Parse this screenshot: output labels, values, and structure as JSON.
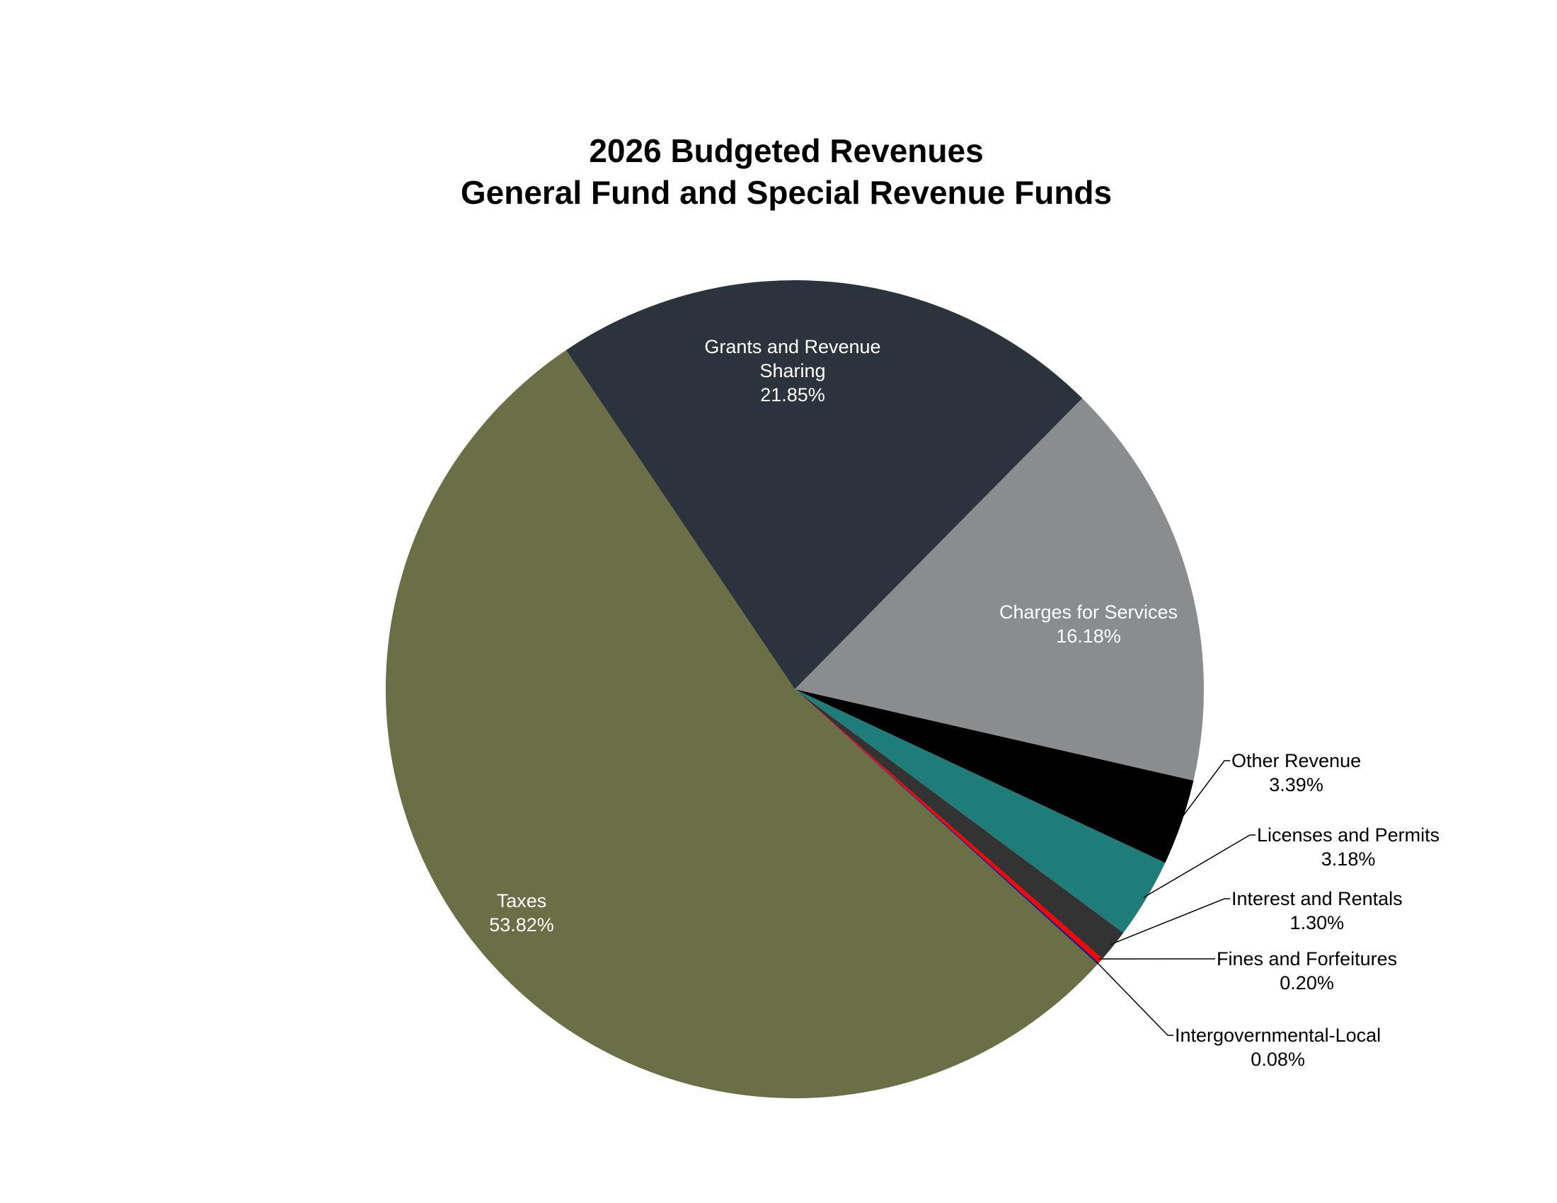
{
  "chart_data": {
    "type": "pie",
    "title": "2026 Budgeted Revenues",
    "subtitle": "General Fund and Special Revenue Funds",
    "categories": [
      "Grants and Revenue Sharing",
      "Charges for Services",
      "Other Revenue",
      "Licenses and Permits",
      "Interest and Rentals",
      "Fines and Forfeitures",
      "Intergovernmental-Local",
      "Taxes"
    ],
    "values": [
      21.85,
      16.18,
      3.39,
      3.18,
      1.3,
      0.2,
      0.08,
      53.82
    ],
    "value_labels": [
      "21.85%",
      "16.18%",
      "3.39%",
      "3.18%",
      "1.30%",
      "0.20%",
      "0.08%",
      "53.82%"
    ],
    "colors": [
      "#2b333c",
      "#8a8c8e",
      "#000000",
      "#1e7d78",
      "#333333",
      "#ff0000",
      "#1a1a80",
      "#6a6f45"
    ]
  }
}
